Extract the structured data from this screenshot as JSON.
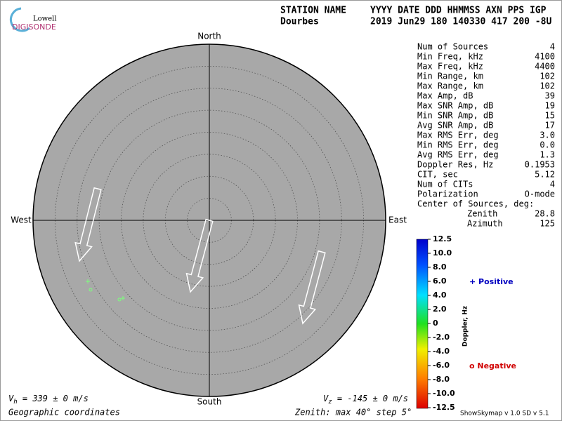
{
  "logo": {
    "line1": "Lowell",
    "line2": "DIGISONDE"
  },
  "header": {
    "labels_left": "STATION NAME",
    "labels_right": "YYYY DATE  DDD HHMMSS AXN PPS IGP",
    "station": "Dourbes",
    "values": "2019 Jun29 180 140330 417 200 -8U"
  },
  "directions": {
    "north": "North",
    "south": "South",
    "west": "West",
    "east": "East"
  },
  "stats": [
    {
      "label": "Num of Sources",
      "value": "4"
    },
    {
      "label": "Min Freq, kHz",
      "value": "4100"
    },
    {
      "label": "Max Freq, kHz",
      "value": "4400"
    },
    {
      "label": "Min Range, km",
      "value": "102"
    },
    {
      "label": "Max Range, km",
      "value": "102"
    },
    {
      "label": "Max Amp, dB",
      "value": "39"
    },
    {
      "label": "Max SNR Amp, dB",
      "value": "19"
    },
    {
      "label": "Min SNR Amp, dB",
      "value": "15"
    },
    {
      "label": "Avg SNR Amp, dB",
      "value": "17"
    },
    {
      "label": "Max RMS Err, deg",
      "value": "3.0"
    },
    {
      "label": "Min RMS Err, deg",
      "value": "0.0"
    },
    {
      "label": "Avg RMS Err, deg",
      "value": "1.3"
    },
    {
      "label": "Doppler Res, Hz",
      "value": "0.1953"
    },
    {
      "label": "CIT, sec",
      "value": "5.12"
    },
    {
      "label": "Num of CITs",
      "value": "4"
    },
    {
      "label": "Polarization",
      "value": "O-mode"
    }
  ],
  "center": {
    "title": "Center of Sources, deg:",
    "rows": [
      {
        "label": "Zenith",
        "value": "28.8"
      },
      {
        "label": "Azimuth",
        "value": "125"
      }
    ]
  },
  "colorbar": {
    "title": "Doppler, Hz",
    "ticks": [
      "12.5",
      "10.0",
      "8.0",
      "6.0",
      "4.0",
      "2.0",
      "0",
      "-2.0",
      "-4.0",
      "-6.0",
      "-8.0",
      "-10.0",
      "-12.5"
    ],
    "positive": "+ Positive",
    "negative": "o Negative"
  },
  "footer": {
    "vh": {
      "symbol": "V",
      "sub": "h",
      "text": " = 339 ± 0 m/s"
    },
    "vz": {
      "symbol": "V",
      "sub": "z",
      "text": " = -145 ± 0 m/s"
    },
    "coords": "Geographic coordinates",
    "zenith": "Zenith: max 40°  step 5°",
    "version": "ShowSkymap v 1.0   SD v 5.1"
  }
}
